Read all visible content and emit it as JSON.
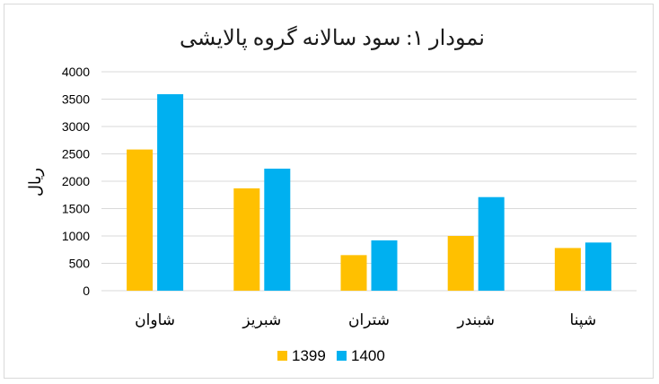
{
  "chart_data": {
    "type": "bar",
    "title": "نمودار ۱: سود سالانه گروه پالایشی",
    "xlabel": "",
    "ylabel": "ریال",
    "categories": [
      "شپنا",
      "شبندر",
      "شتران",
      "شبریز",
      "شاوان"
    ],
    "series": [
      {
        "name": "1399",
        "color": "#FFC000",
        "values": [
          780,
          1000,
          650,
          1870,
          2580
        ]
      },
      {
        "name": "1400",
        "color": "#00B0F0",
        "values": [
          880,
          1710,
          920,
          2230,
          3590
        ]
      }
    ],
    "ylim": [
      0,
      4000
    ],
    "yticks": [
      "0",
      "500",
      "1000",
      "1500",
      "2000",
      "2500",
      "3000",
      "3500",
      "4000"
    ],
    "grid": true,
    "legend_position": "bottom",
    "gridline_color": "#d9d9d9"
  }
}
